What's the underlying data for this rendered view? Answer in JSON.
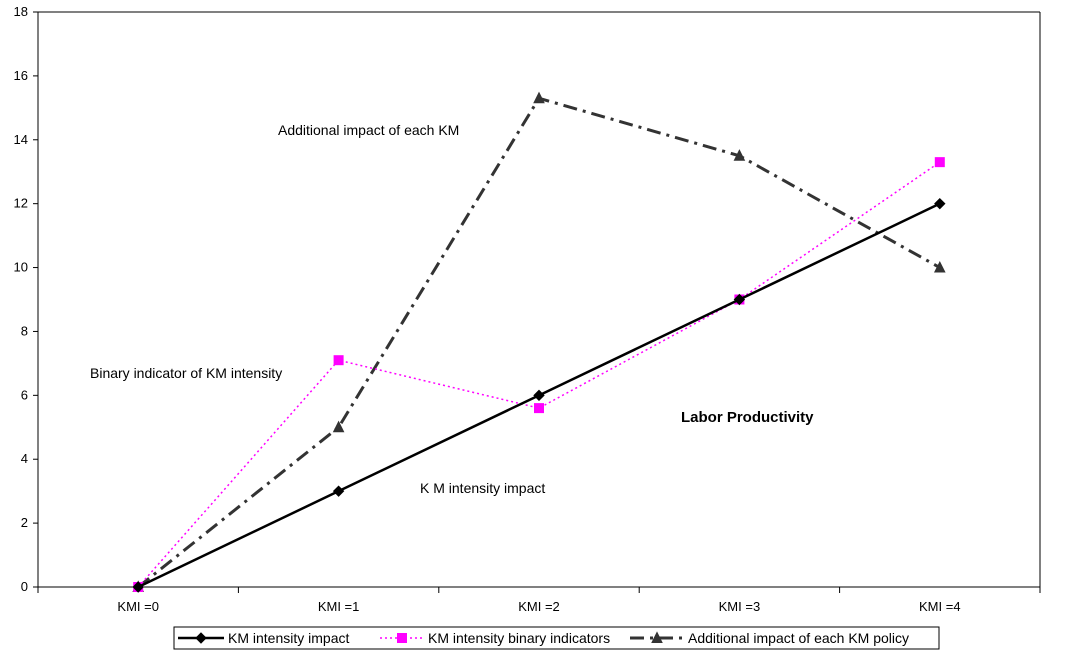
{
  "chart_data": {
    "type": "line",
    "categories": [
      "KMI =0",
      "KMI =1",
      "KMI =2",
      "KMI =3",
      "KMI =4"
    ],
    "ylim": [
      0,
      18
    ],
    "yticks": [
      0,
      2,
      4,
      6,
      8,
      10,
      12,
      14,
      16,
      18
    ],
    "grid": false,
    "legend_position": "bottom",
    "series": [
      {
        "name": "KM intensity impact",
        "values": [
          0,
          3,
          6,
          9,
          12
        ],
        "color": "#000000",
        "marker": "diamond",
        "line_style": "solid"
      },
      {
        "name": "KM intensity binary indicators",
        "values": [
          0,
          7.1,
          5.6,
          9,
          13.3
        ],
        "color": "#ff00ff",
        "marker": "square",
        "line_style": "dotted"
      },
      {
        "name": "Additional impact of each KM policy",
        "values": [
          0,
          5,
          15.3,
          13.5,
          10
        ],
        "color": "#333333",
        "marker": "triangle",
        "line_style": "dash-dot"
      }
    ],
    "annotations": [
      {
        "text": "Additional impact of each KM"
      },
      {
        "text": "Binary indicator of KM intensity"
      },
      {
        "text": "Labor Productivity"
      },
      {
        "text": "K M intensity impact"
      }
    ]
  }
}
